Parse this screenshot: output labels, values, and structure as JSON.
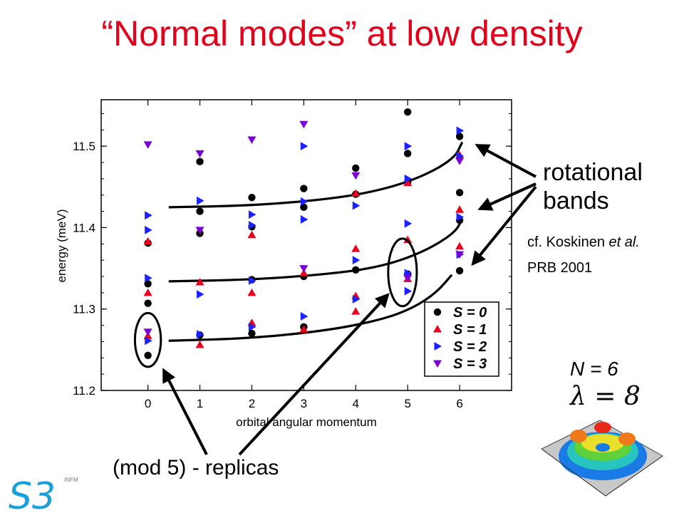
{
  "slide": {
    "title": "“Normal modes” at low density",
    "rotational_label_1": "rotational",
    "rotational_label_2": "bands",
    "citation_line_1_a": "cf. Koskinen ",
    "citation_line_1_b": "et al.",
    "citation_line_2": "PRB 2001",
    "n_label": "N = 6",
    "lambda_label": "λ = 8",
    "replicas_label": "(mod 5) - replicas",
    "logo_text": "S3",
    "logo_sup": "INFM"
  },
  "chart_data": {
    "type": "scatter",
    "xlabel": "orbital angular momentum",
    "ylabel": "energy  (meV)",
    "xlim": [
      -0.9,
      7.0
    ],
    "ylim": [
      11.2,
      11.557
    ],
    "xticks": [
      0,
      1,
      2,
      3,
      4,
      5,
      6
    ],
    "yticks": [
      11.2,
      11.3,
      11.4,
      11.5
    ],
    "ytick_labels": [
      "11.2",
      "11.3",
      "11.4",
      "11.5"
    ],
    "legend_position": "bottom-right",
    "series": [
      {
        "name": "S = 0",
        "marker": "circle",
        "color": "#000000",
        "points": [
          [
            0,
            11.243
          ],
          [
            0,
            11.307
          ],
          [
            0,
            11.331
          ],
          [
            0,
            11.381
          ],
          [
            1,
            11.268
          ],
          [
            1,
            11.393
          ],
          [
            1,
            11.42
          ],
          [
            1,
            11.481
          ],
          [
            2,
            11.27
          ],
          [
            2,
            11.336
          ],
          [
            2,
            11.401
          ],
          [
            2,
            11.437
          ],
          [
            3,
            11.278
          ],
          [
            3,
            11.34
          ],
          [
            3,
            11.425
          ],
          [
            3,
            11.448
          ],
          [
            4,
            11.348
          ],
          [
            4,
            11.441
          ],
          [
            4,
            11.473
          ],
          [
            5,
            11.343
          ],
          [
            5,
            11.456
          ],
          [
            5,
            11.491
          ],
          [
            5,
            11.542
          ],
          [
            6,
            11.347
          ],
          [
            6,
            11.409
          ],
          [
            6,
            11.443
          ],
          [
            6,
            11.512
          ]
        ]
      },
      {
        "name": "S = 1",
        "marker": "triangle-up",
        "color": "#e8001c",
        "points": [
          [
            0,
            11.267
          ],
          [
            0,
            11.32
          ],
          [
            0,
            11.383
          ],
          [
            1,
            11.256
          ],
          [
            1,
            11.333
          ],
          [
            2,
            11.283
          ],
          [
            2,
            11.32
          ],
          [
            2,
            11.391
          ],
          [
            3,
            11.275
          ],
          [
            3,
            11.344
          ],
          [
            4,
            11.297
          ],
          [
            4,
            11.316
          ],
          [
            4,
            11.374
          ],
          [
            4,
            11.442
          ],
          [
            5,
            11.337
          ],
          [
            5,
            11.385
          ],
          [
            5,
            11.455
          ],
          [
            6,
            11.377
          ],
          [
            6,
            11.422
          ],
          [
            6,
            11.489
          ]
        ]
      },
      {
        "name": "S = 2",
        "marker": "triangle-right",
        "color": "#1a22ff",
        "points": [
          [
            0,
            11.261
          ],
          [
            0,
            11.338
          ],
          [
            0,
            11.397
          ],
          [
            0,
            11.415
          ],
          [
            1,
            11.269
          ],
          [
            1,
            11.318
          ],
          [
            1,
            11.433
          ],
          [
            2,
            11.278
          ],
          [
            2,
            11.335
          ],
          [
            2,
            11.403
          ],
          [
            2,
            11.416
          ],
          [
            3,
            11.291
          ],
          [
            3,
            11.41
          ],
          [
            3,
            11.432
          ],
          [
            3,
            11.5
          ],
          [
            4,
            11.312
          ],
          [
            4,
            11.36
          ],
          [
            4,
            11.427
          ],
          [
            5,
            11.322
          ],
          [
            5,
            11.344
          ],
          [
            5,
            11.405
          ],
          [
            5,
            11.46
          ],
          [
            5,
            11.5
          ],
          [
            6,
            11.367
          ],
          [
            6,
            11.413
          ],
          [
            6,
            11.488
          ],
          [
            6,
            11.519
          ]
        ]
      },
      {
        "name": "S = 3",
        "marker": "triangle-down",
        "color": "#7b00d6",
        "points": [
          [
            0,
            11.272
          ],
          [
            0,
            11.502
          ],
          [
            1,
            11.397
          ],
          [
            1,
            11.491
          ],
          [
            2,
            11.508
          ],
          [
            3,
            11.35
          ],
          [
            3,
            11.527
          ],
          [
            4,
            11.464
          ],
          [
            5,
            11.338
          ],
          [
            6,
            11.367
          ],
          [
            6,
            11.482
          ]
        ]
      }
    ],
    "fit_curves": [
      [
        [
          0.4,
          11.425
        ],
        [
          2.0,
          11.427
        ],
        [
          3.5,
          11.435
        ],
        [
          4.5,
          11.446
        ],
        [
          5.3,
          11.463
        ],
        [
          5.9,
          11.485
        ],
        [
          6.05,
          11.505
        ]
      ],
      [
        [
          0.4,
          11.334
        ],
        [
          2.0,
          11.336
        ],
        [
          3.5,
          11.343
        ],
        [
          4.5,
          11.352
        ],
        [
          5.3,
          11.37
        ],
        [
          5.9,
          11.393
        ],
        [
          6.05,
          11.41
        ]
      ],
      [
        [
          0.4,
          11.261
        ],
        [
          2.0,
          11.264
        ],
        [
          3.5,
          11.274
        ],
        [
          4.5,
          11.287
        ],
        [
          5.1,
          11.301
        ],
        [
          5.55,
          11.32
        ],
        [
          5.85,
          11.342
        ]
      ]
    ],
    "replica_ellipses": [
      {
        "x": 0,
        "y": 11.262,
        "w": 0.5,
        "h": 0.066
      },
      {
        "x": 4.9,
        "y": 11.345,
        "w": 0.55,
        "h": 0.083
      }
    ]
  }
}
